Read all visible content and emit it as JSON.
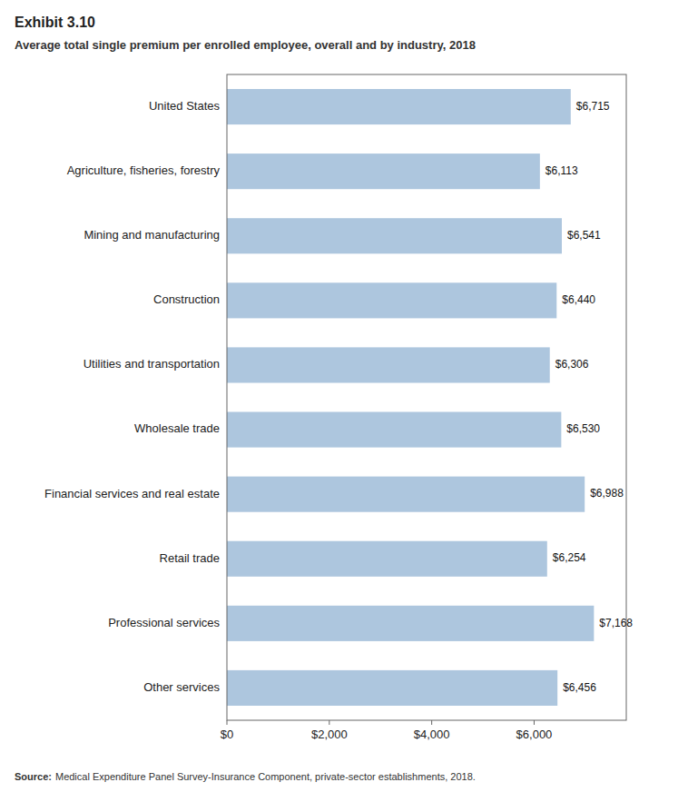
{
  "chart_data": {
    "type": "bar",
    "orientation": "horizontal",
    "title": "Exhibit 3.10",
    "subtitle": "Average total single premium per enrolled employee, overall and by industry, 2018",
    "categories": [
      "United States",
      "Agriculture, fisheries, forestry",
      "Mining and manufacturing",
      "Construction",
      "Utilities and transportation",
      "Wholesale trade",
      "Financial services and real estate",
      "Retail trade",
      "Professional services",
      "Other services"
    ],
    "values": [
      6715,
      6113,
      6541,
      6440,
      6306,
      6530,
      6988,
      6254,
      7168,
      6456
    ],
    "value_labels": [
      "$6,715",
      "$6,113",
      "$6,541",
      "$6,440",
      "$6,306",
      "$6,530",
      "$6,988",
      "$6,254",
      "$7,168",
      "$6,456"
    ],
    "data_labels": true,
    "color": "#adc6de",
    "xlim": [
      0,
      7800
    ],
    "xticks": [
      {
        "value": 0,
        "label": "$0"
      },
      {
        "value": 2000,
        "label": "$2,000"
      },
      {
        "value": 4000,
        "label": "$4,000"
      },
      {
        "value": 6000,
        "label": "$6,000"
      }
    ],
    "grid": false,
    "annotations": [
      "Source:",
      "Medical Expenditure Panel Survey-Insurance Component, private-sector establishments, 2018."
    ]
  }
}
